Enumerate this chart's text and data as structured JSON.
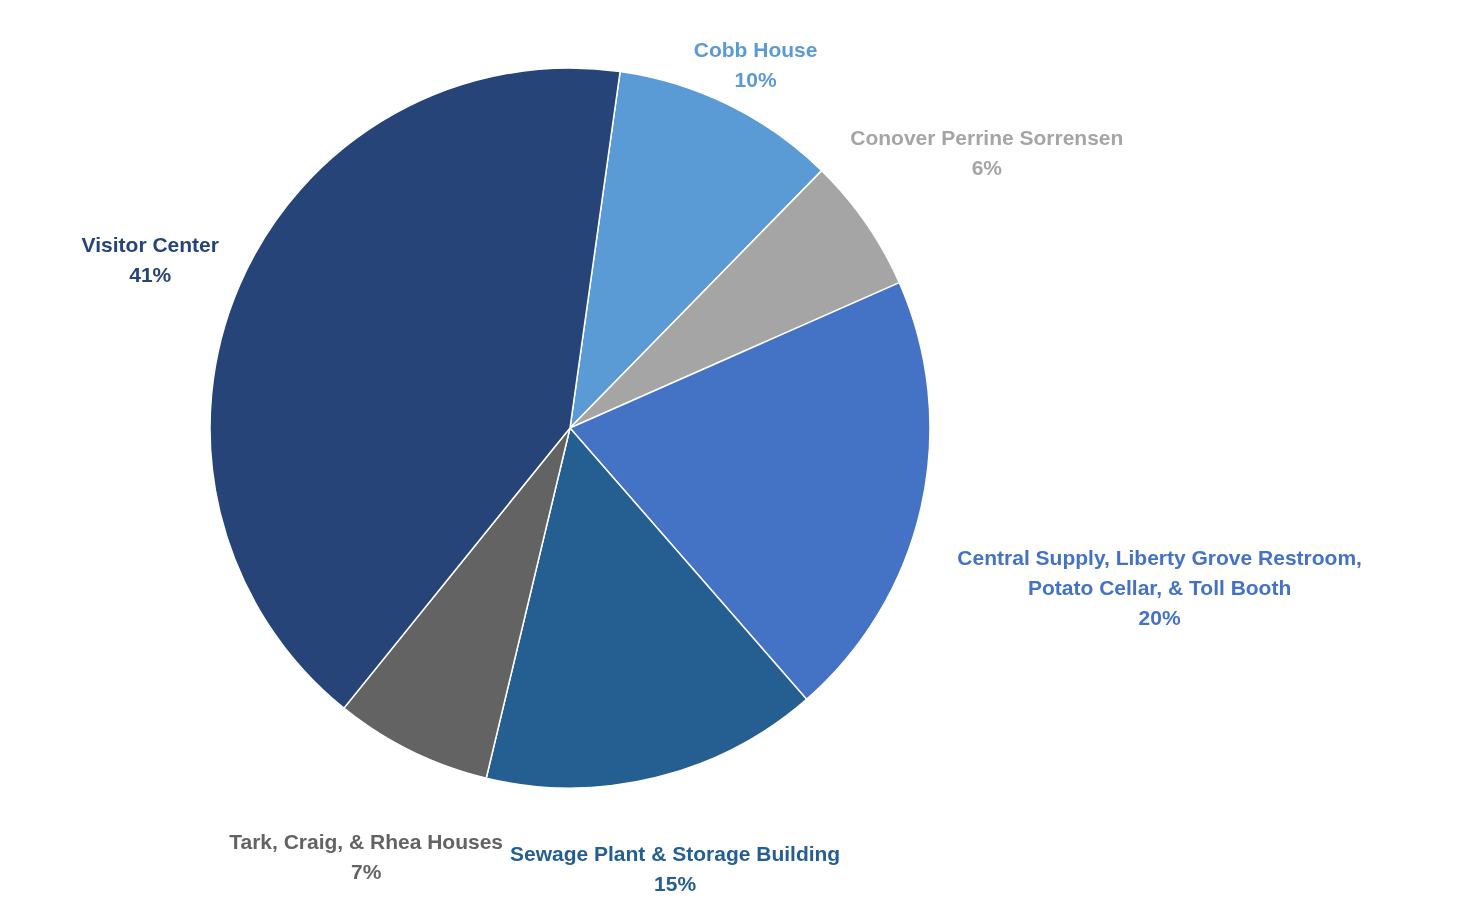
{
  "chart_data": {
    "type": "pie",
    "categories": [
      "Cobb House",
      "Conover Perrine Sorrensen",
      "Central Supply, Liberty Grove Restroom, Potato Cellar, & Toll Booth",
      "Sewage Plant & Storage Building",
      "Tark, Craig, & Rhea Houses",
      "Visitor Center"
    ],
    "values": [
      10,
      6,
      20,
      15,
      7,
      41
    ],
    "value_labels": [
      "10%",
      "6%",
      "20%",
      "15%",
      "7%",
      "41%"
    ],
    "colors": [
      "#5b9bd5",
      "#a5a5a5",
      "#4472c4",
      "#255e91",
      "#636363",
      "#264478"
    ]
  }
}
